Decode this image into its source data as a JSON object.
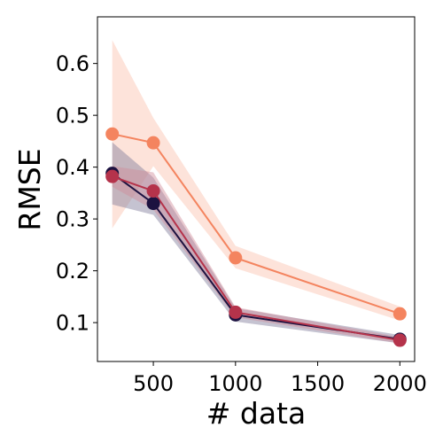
{
  "chart_data": {
    "type": "line",
    "title": "",
    "xlabel": "# data",
    "ylabel": "RMSE",
    "xlim": [
      160,
      2090
    ],
    "ylim": [
      0.025,
      0.69
    ],
    "x_ticks": [
      500,
      1000,
      1500,
      2000
    ],
    "y_ticks": [
      0.1,
      0.2,
      0.3,
      0.4,
      0.5,
      0.6
    ],
    "x_tick_labels": [
      "500",
      "1000",
      "1500",
      "2000"
    ],
    "y_tick_labels": [
      "0.1",
      "0.2",
      "0.3",
      "0.4",
      "0.5",
      "0.6"
    ],
    "grid": false,
    "legend": "none",
    "x": [
      250,
      500,
      1000,
      2000
    ],
    "series": [
      {
        "color": "#f4845f",
        "band_color": "#fbc2ae",
        "values": [
          0.464,
          0.447,
          0.225,
          0.117
        ],
        "lower": [
          0.282,
          0.402,
          0.205,
          0.104
        ],
        "upper": [
          0.645,
          0.495,
          0.248,
          0.131
        ]
      },
      {
        "color": "#1c1240",
        "band_color": "#7f7b9a",
        "values": [
          0.388,
          0.33,
          0.115,
          0.068
        ],
        "lower": [
          0.328,
          0.308,
          0.102,
          0.06
        ],
        "upper": [
          0.448,
          0.38,
          0.128,
          0.076
        ]
      },
      {
        "color": "#b5334b",
        "band_color": "#d08c9a",
        "values": [
          0.382,
          0.354,
          0.12,
          0.066
        ],
        "lower": [
          0.362,
          0.318,
          0.11,
          0.06
        ],
        "upper": [
          0.402,
          0.39,
          0.13,
          0.072
        ]
      }
    ]
  }
}
